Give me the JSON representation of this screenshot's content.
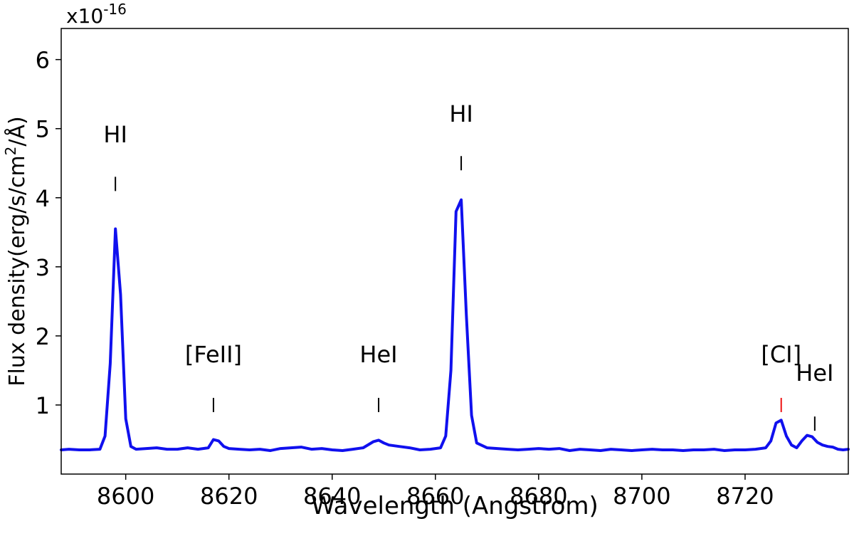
{
  "chart_data": {
    "type": "line",
    "xlabel": "Wavelength (Angstrom)",
    "ylabel_main": "Flux density(erg/s/cm",
    "ylabel_sup": "2",
    "ylabel_tail": "/Å)",
    "offset_base": "x10",
    "offset_exp": "-16",
    "xlim": [
      8587.5,
      8740
    ],
    "ylim": [
      0,
      6.45
    ],
    "xticks": [
      8600,
      8620,
      8640,
      8660,
      8680,
      8700,
      8720
    ],
    "yticks": [
      1,
      2,
      3,
      4,
      5,
      6
    ],
    "series": [
      {
        "color": "#1010ee",
        "x": [
          8587.5,
          8589,
          8591,
          8593,
          8595,
          8596,
          8597,
          8598,
          8599,
          8600,
          8601,
          8602,
          8604,
          8606,
          8608,
          8610,
          8612,
          8614,
          8616,
          8617,
          8618,
          8619,
          8620,
          8622,
          8624,
          8626,
          8628,
          8630,
          8632,
          8634,
          8636,
          8638,
          8640,
          8642,
          8644,
          8646,
          8648,
          8649,
          8650,
          8651,
          8653,
          8655,
          8657,
          8659,
          8661,
          8662,
          8663,
          8664,
          8665,
          8666,
          8667,
          8668,
          8670,
          8672,
          8674,
          8676,
          8678,
          8680,
          8682,
          8684,
          8686,
          8688,
          8690,
          8692,
          8694,
          8696,
          8698,
          8700,
          8702,
          8704,
          8706,
          8708,
          8710,
          8712,
          8714,
          8716,
          8718,
          8720,
          8722,
          8724,
          8725,
          8726,
          8727,
          8728,
          8729,
          8730,
          8731,
          8732,
          8733,
          8734,
          8735,
          8736,
          8737,
          8738,
          8739,
          8740
        ],
        "y": [
          0.35,
          0.36,
          0.35,
          0.35,
          0.36,
          0.55,
          1.6,
          3.55,
          2.6,
          0.8,
          0.4,
          0.36,
          0.37,
          0.38,
          0.36,
          0.36,
          0.38,
          0.36,
          0.38,
          0.5,
          0.48,
          0.4,
          0.37,
          0.36,
          0.35,
          0.36,
          0.34,
          0.37,
          0.38,
          0.39,
          0.36,
          0.37,
          0.35,
          0.34,
          0.36,
          0.38,
          0.47,
          0.49,
          0.45,
          0.42,
          0.4,
          0.38,
          0.35,
          0.36,
          0.38,
          0.55,
          1.5,
          3.8,
          3.97,
          2.3,
          0.85,
          0.45,
          0.38,
          0.37,
          0.36,
          0.35,
          0.36,
          0.37,
          0.36,
          0.37,
          0.34,
          0.36,
          0.35,
          0.34,
          0.36,
          0.35,
          0.34,
          0.35,
          0.36,
          0.35,
          0.35,
          0.34,
          0.35,
          0.35,
          0.36,
          0.34,
          0.35,
          0.35,
          0.36,
          0.38,
          0.48,
          0.74,
          0.78,
          0.55,
          0.42,
          0.38,
          0.48,
          0.56,
          0.54,
          0.46,
          0.42,
          0.4,
          0.39,
          0.36,
          0.35,
          0.36
        ]
      }
    ],
    "annotations": [
      {
        "text": "HI",
        "x": 8598,
        "y_text": 4.8,
        "y_mark": 4.2,
        "color": "#000000"
      },
      {
        "text": "[FeII]",
        "x": 8617,
        "y_text": 1.62,
        "y_mark": 1.0,
        "color": "#000000"
      },
      {
        "text": "HeI",
        "x": 8649,
        "y_text": 1.62,
        "y_mark": 1.0,
        "color": "#000000"
      },
      {
        "text": "HI",
        "x": 8665,
        "y_text": 5.1,
        "y_mark": 4.5,
        "color": "#000000"
      },
      {
        "text": "[CI]",
        "x": 8727,
        "y_text": 1.62,
        "y_mark": 1.0,
        "color": "#ee1111"
      },
      {
        "text": "HeI",
        "x": 8733.5,
        "y_text": 1.35,
        "y_mark": 0.73,
        "color": "#000000"
      }
    ]
  }
}
